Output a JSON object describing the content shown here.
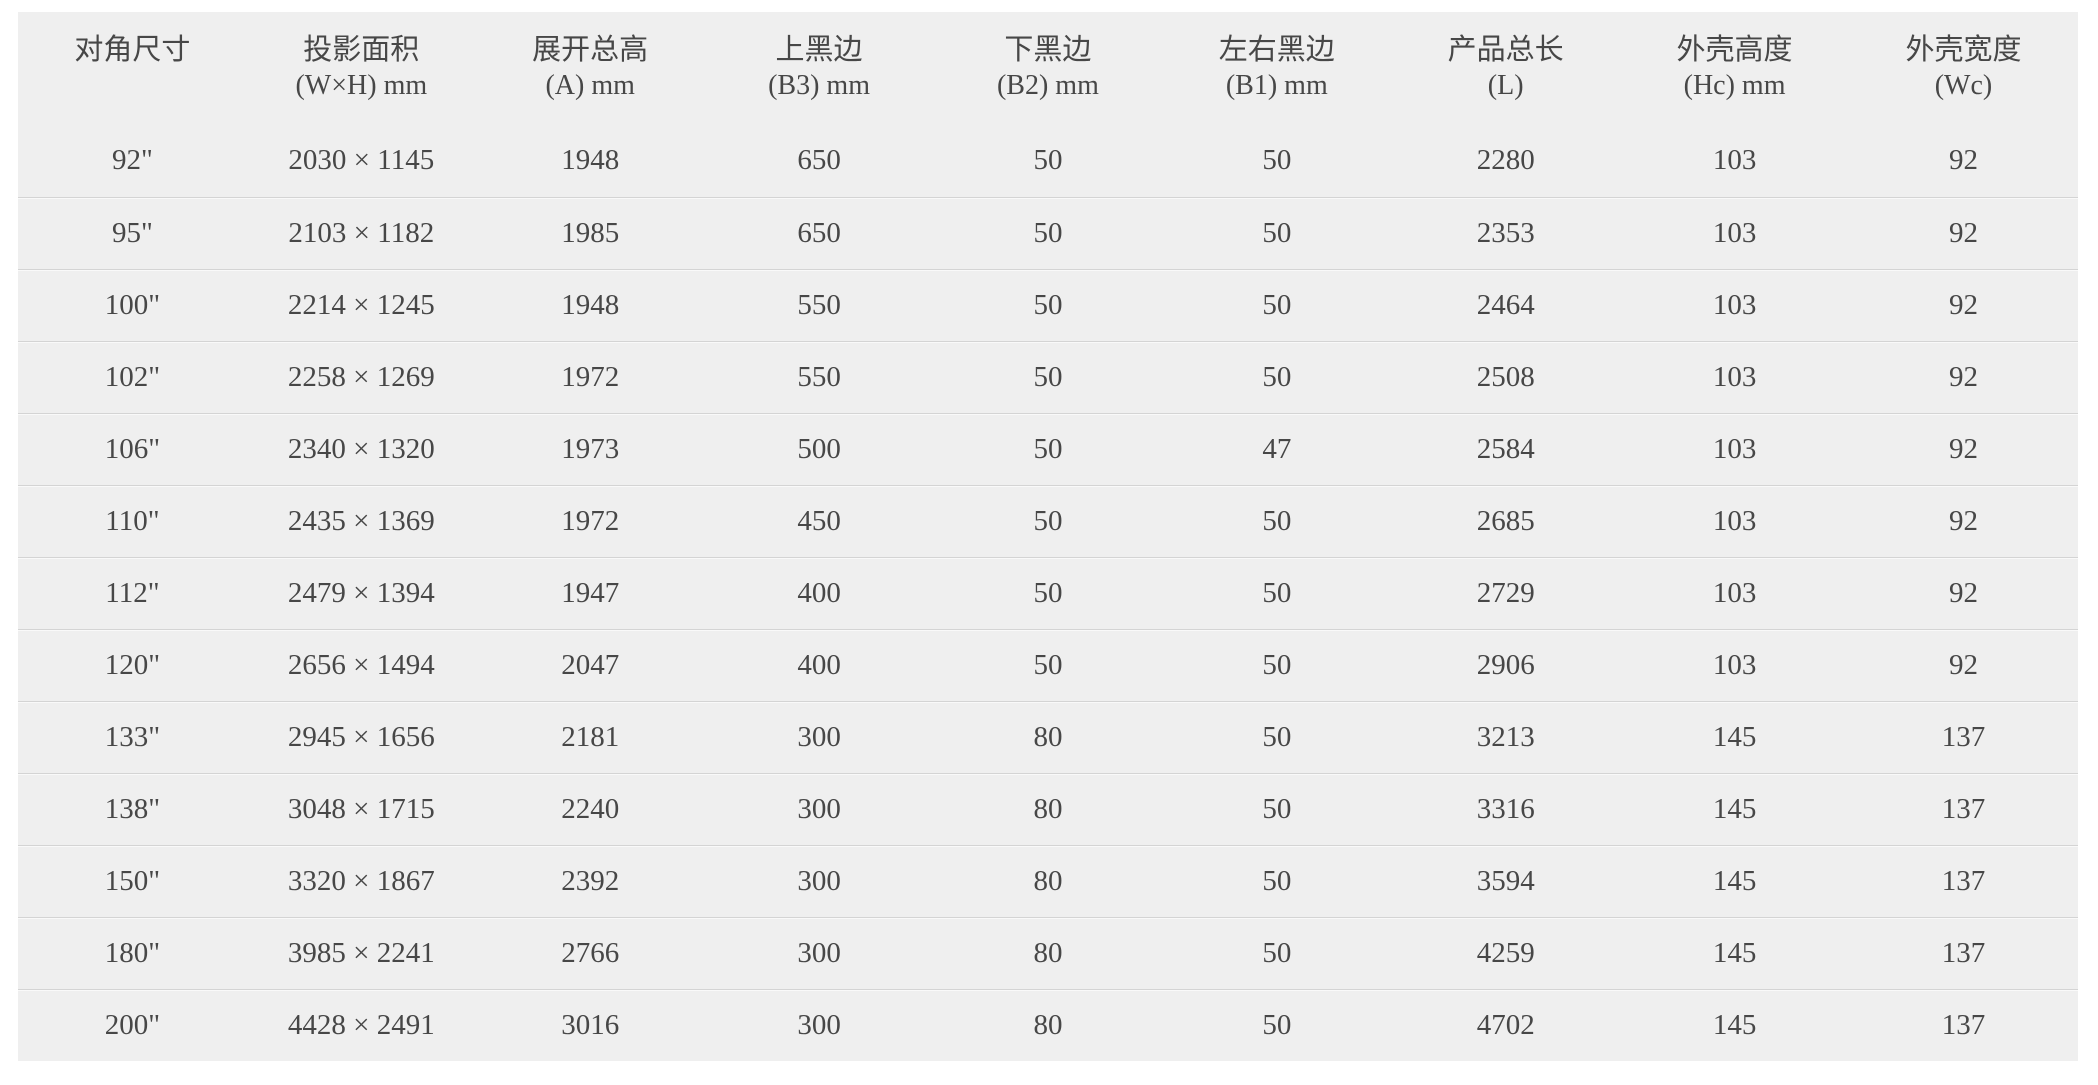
{
  "colors": {
    "page_background": "#ffffff",
    "table_background": "#efefef",
    "text": "#474747",
    "divider": "#d4d4d4",
    "divider_light": "#f9f9f9"
  },
  "table": {
    "columns": [
      {
        "title": "对角尺寸",
        "unit": ""
      },
      {
        "title": "投影面积",
        "unit": "(W×H) mm"
      },
      {
        "title": "展开总高",
        "unit": "(A) mm"
      },
      {
        "title": "上黑边",
        "unit": "(B3) mm"
      },
      {
        "title": "下黑边",
        "unit": "(B2) mm"
      },
      {
        "title": "左右黑边",
        "unit": "(B1) mm"
      },
      {
        "title": "产品总长",
        "unit": "(L)"
      },
      {
        "title": "外壳高度",
        "unit": "(Hc) mm"
      },
      {
        "title": "外壳宽度",
        "unit": "(Wc)"
      }
    ],
    "rows": [
      [
        "92\"",
        "2030 × 1145",
        "1948",
        "650",
        "50",
        "50",
        "2280",
        "103",
        "92"
      ],
      [
        "95\"",
        "2103 × 1182",
        "1985",
        "650",
        "50",
        "50",
        "2353",
        "103",
        "92"
      ],
      [
        "100\"",
        "2214 × 1245",
        "1948",
        "550",
        "50",
        "50",
        "2464",
        "103",
        "92"
      ],
      [
        "102\"",
        "2258 × 1269",
        "1972",
        "550",
        "50",
        "50",
        "2508",
        "103",
        "92"
      ],
      [
        "106\"",
        "2340 × 1320",
        "1973",
        "500",
        "50",
        "47",
        "2584",
        "103",
        "92"
      ],
      [
        "110\"",
        "2435 × 1369",
        "1972",
        "450",
        "50",
        "50",
        "2685",
        "103",
        "92"
      ],
      [
        "112\"",
        "2479 × 1394",
        "1947",
        "400",
        "50",
        "50",
        "2729",
        "103",
        "92"
      ],
      [
        "120\"",
        "2656 × 1494",
        "2047",
        "400",
        "50",
        "50",
        "2906",
        "103",
        "92"
      ],
      [
        "133\"",
        "2945 × 1656",
        "2181",
        "300",
        "80",
        "50",
        "3213",
        "145",
        "137"
      ],
      [
        "138\"",
        "3048 × 1715",
        "2240",
        "300",
        "80",
        "50",
        "3316",
        "145",
        "137"
      ],
      [
        "150\"",
        "3320 × 1867",
        "2392",
        "300",
        "80",
        "50",
        "3594",
        "145",
        "137"
      ],
      [
        "180\"",
        "3985 × 2241",
        "2766",
        "300",
        "80",
        "50",
        "4259",
        "145",
        "137"
      ],
      [
        "200\"",
        "4428 × 2491",
        "3016",
        "300",
        "80",
        "50",
        "4702",
        "145",
        "137"
      ]
    ]
  }
}
